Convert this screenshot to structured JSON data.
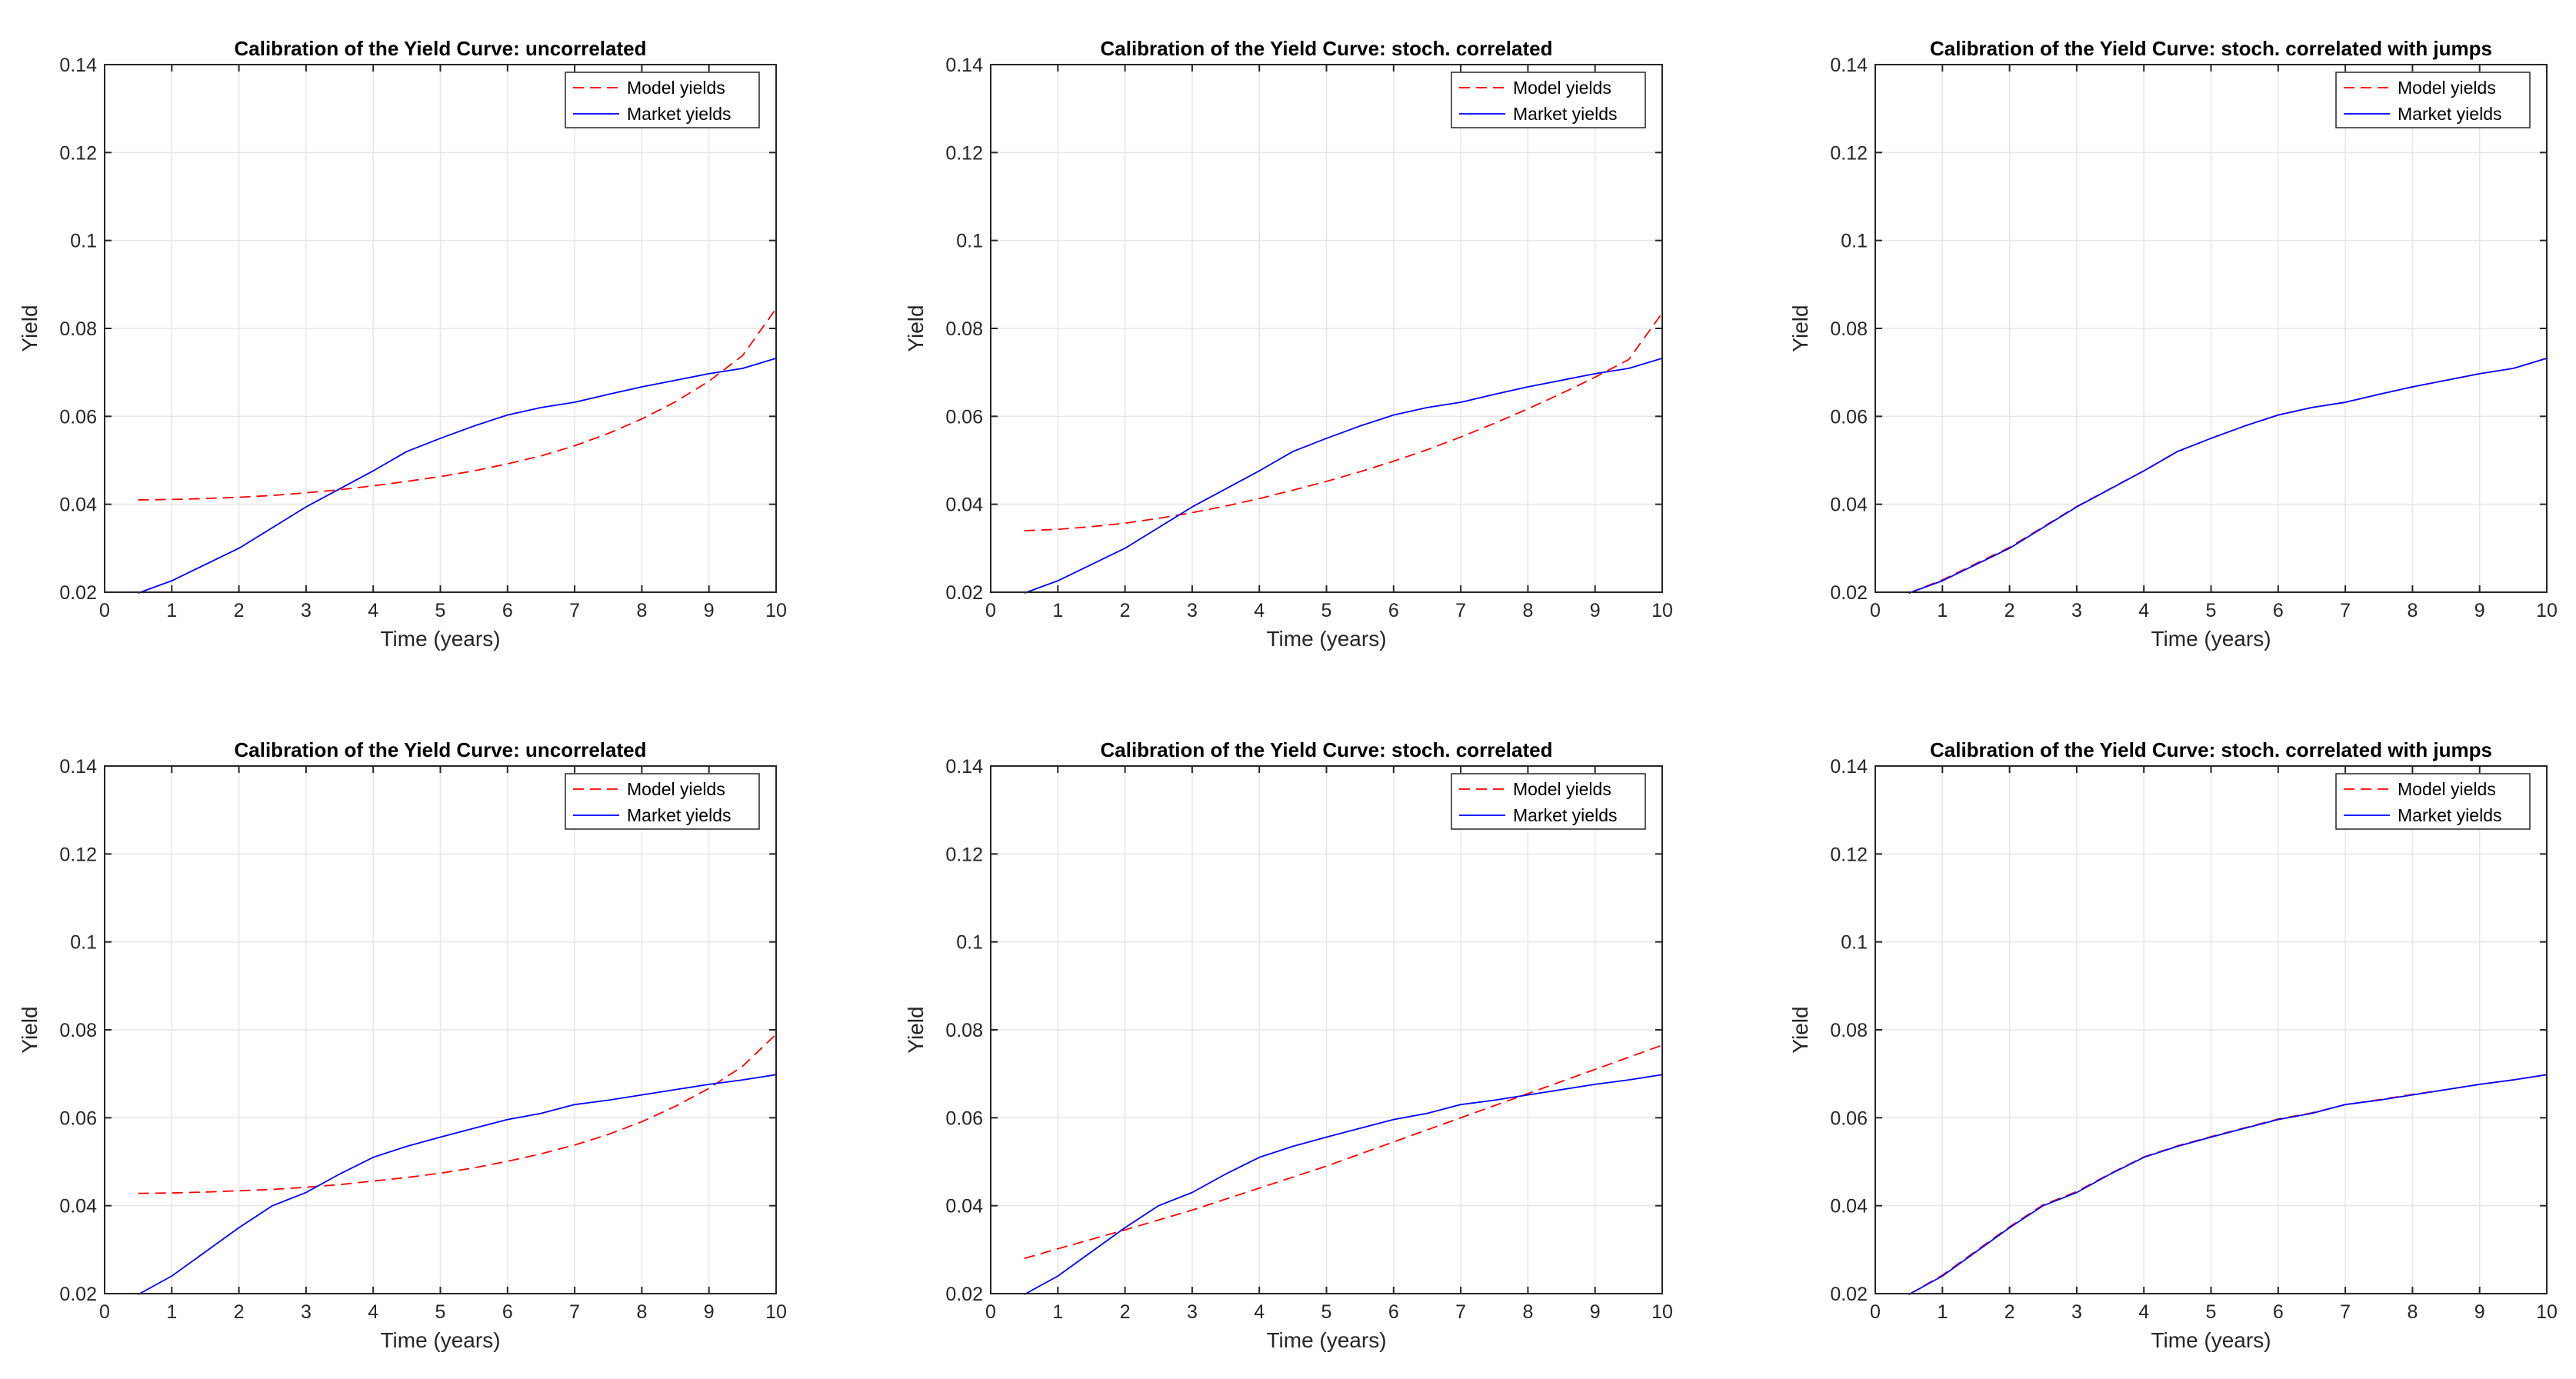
{
  "figure": {
    "background": "#ffffff",
    "grid_color": "#e6e6e6",
    "axis_color": "#262626",
    "model_color": "#ff0000",
    "market_color": "#0000ff"
  },
  "chart_data": [
    {
      "type": "line",
      "title": "Calibration of the Yield Curve: uncorrelated",
      "xlabel": "Time (years)",
      "ylabel": "Yield",
      "xlim": [
        0,
        10
      ],
      "ylim": [
        0.02,
        0.14
      ],
      "xticks": [
        "0",
        "1",
        "2",
        "3",
        "4",
        "5",
        "6",
        "7",
        "8",
        "9",
        "10"
      ],
      "yticks": [
        "0.02",
        "0.04",
        "0.06",
        "0.08",
        "0.1",
        "0.12",
        "0.14"
      ],
      "grid": true,
      "legend": "top-right",
      "series": [
        {
          "name": "Model yields",
          "style": "dashed",
          "color": "#ff0000",
          "x": [
            0.5,
            1,
            1.5,
            2,
            2.5,
            3,
            3.5,
            4,
            4.5,
            5,
            5.5,
            6,
            6.5,
            7,
            7.5,
            8,
            8.5,
            9,
            9.5,
            10
          ],
          "y": [
            0.041,
            0.0411,
            0.0413,
            0.0416,
            0.042,
            0.0426,
            0.0433,
            0.0442,
            0.0452,
            0.0463,
            0.0476,
            0.0492,
            0.051,
            0.0533,
            0.0561,
            0.0594,
            0.0633,
            0.068,
            0.0738,
            0.0845
          ]
        },
        {
          "name": "Market yields",
          "style": "solid",
          "color": "#0000ff",
          "x": [
            0.5,
            1,
            2,
            3,
            4,
            4.5,
            5,
            5.5,
            6,
            6.5,
            7,
            7.5,
            8,
            8.5,
            9,
            9.5,
            10
          ],
          "y": [
            0.0198,
            0.0226,
            0.03,
            0.0394,
            0.0476,
            0.052,
            0.055,
            0.0578,
            0.0603,
            0.062,
            0.0632,
            0.065,
            0.0667,
            0.0682,
            0.0697,
            0.0709,
            0.0732
          ]
        }
      ]
    },
    {
      "type": "line",
      "title": "Calibration of the Yield Curve: stoch. correlated",
      "xlabel": "Time (years)",
      "ylabel": "Yield",
      "xlim": [
        0,
        10
      ],
      "ylim": [
        0.02,
        0.14
      ],
      "xticks": [
        "0",
        "1",
        "2",
        "3",
        "4",
        "5",
        "6",
        "7",
        "8",
        "9",
        "10"
      ],
      "yticks": [
        "0.02",
        "0.04",
        "0.06",
        "0.08",
        "0.1",
        "0.12",
        "0.14"
      ],
      "grid": true,
      "legend": "top-right",
      "series": [
        {
          "name": "Model yields",
          "style": "dashed",
          "color": "#ff0000",
          "x": [
            0.5,
            1,
            1.5,
            2,
            2.5,
            3,
            3.5,
            4,
            4.5,
            5,
            5.5,
            6,
            6.5,
            7,
            7.5,
            8,
            8.5,
            9,
            9.5,
            10
          ],
          "y": [
            0.034,
            0.0343,
            0.0349,
            0.0357,
            0.0368,
            0.0381,
            0.0396,
            0.0413,
            0.0432,
            0.0452,
            0.0474,
            0.0498,
            0.0524,
            0.0553,
            0.0584,
            0.0617,
            0.0652,
            0.0689,
            0.0729,
            0.0835
          ]
        },
        {
          "name": "Market yields",
          "style": "solid",
          "color": "#0000ff",
          "x": [
            0.5,
            1,
            2,
            3,
            4,
            4.5,
            5,
            5.5,
            6,
            6.5,
            7,
            7.5,
            8,
            8.5,
            9,
            9.5,
            10
          ],
          "y": [
            0.0198,
            0.0226,
            0.03,
            0.0394,
            0.0476,
            0.052,
            0.055,
            0.0578,
            0.0603,
            0.062,
            0.0632,
            0.065,
            0.0667,
            0.0682,
            0.0697,
            0.0709,
            0.0732
          ]
        }
      ]
    },
    {
      "type": "line",
      "title": "Calibration of the Yield Curve: stoch. correlated with jumps",
      "xlabel": "Time (years)",
      "ylabel": "Yield",
      "xlim": [
        0,
        10
      ],
      "ylim": [
        0.02,
        0.14
      ],
      "xticks": [
        "0",
        "1",
        "2",
        "3",
        "4",
        "5",
        "6",
        "7",
        "8",
        "9",
        "10"
      ],
      "yticks": [
        "0.02",
        "0.04",
        "0.06",
        "0.08",
        "0.1",
        "0.12",
        "0.14"
      ],
      "grid": true,
      "legend": "top-right",
      "series": [
        {
          "name": "Model yields",
          "style": "dashed",
          "color": "#ff0000",
          "x": [
            0.5,
            1,
            2,
            3,
            4,
            4.5,
            5,
            5.5,
            6,
            6.5,
            7,
            7.5,
            8,
            8.5,
            9,
            9.5,
            10
          ],
          "y": [
            0.0198,
            0.0228,
            0.0302,
            0.0395,
            0.0476,
            0.052,
            0.055,
            0.0578,
            0.0603,
            0.062,
            0.0632,
            0.065,
            0.0667,
            0.0682,
            0.0697,
            0.0709,
            0.0732
          ]
        },
        {
          "name": "Market yields",
          "style": "solid",
          "color": "#0000ff",
          "x": [
            0.5,
            1,
            2,
            3,
            4,
            4.5,
            5,
            5.5,
            6,
            6.5,
            7,
            7.5,
            8,
            8.5,
            9,
            9.5,
            10
          ],
          "y": [
            0.0198,
            0.0226,
            0.03,
            0.0394,
            0.0476,
            0.052,
            0.055,
            0.0578,
            0.0603,
            0.062,
            0.0632,
            0.065,
            0.0667,
            0.0682,
            0.0697,
            0.0709,
            0.0732
          ]
        }
      ]
    },
    {
      "type": "line",
      "title": "Calibration of the Yield Curve: uncorrelated",
      "xlabel": "Time (years)",
      "ylabel": "Yield",
      "xlim": [
        0,
        10
      ],
      "ylim": [
        0.02,
        0.14
      ],
      "xticks": [
        "0",
        "1",
        "2",
        "3",
        "4",
        "5",
        "6",
        "7",
        "8",
        "9",
        "10"
      ],
      "yticks": [
        "0.02",
        "0.04",
        "0.06",
        "0.08",
        "0.1",
        "0.12",
        "0.14"
      ],
      "grid": true,
      "legend": "top-right",
      "series": [
        {
          "name": "Model yields",
          "style": "dashed",
          "color": "#ff0000",
          "x": [
            0.5,
            1,
            1.5,
            2,
            2.5,
            3,
            3.5,
            4,
            4.5,
            5,
            5.5,
            6,
            6.5,
            7,
            7.5,
            8,
            8.5,
            9,
            9.5,
            10
          ],
          "y": [
            0.0428,
            0.0429,
            0.0431,
            0.0434,
            0.0437,
            0.0442,
            0.0448,
            0.0456,
            0.0464,
            0.0474,
            0.0486,
            0.0501,
            0.0518,
            0.0538,
            0.0562,
            0.0591,
            0.0626,
            0.0667,
            0.0717,
            0.079
          ]
        },
        {
          "name": "Market yields",
          "style": "solid",
          "color": "#0000ff",
          "x": [
            0.5,
            1,
            2,
            2.5,
            3,
            3.5,
            4,
            4.5,
            5,
            5.5,
            6,
            6.5,
            7,
            7.5,
            8,
            8.5,
            9,
            9.5,
            10
          ],
          "y": [
            0.0198,
            0.024,
            0.035,
            0.04,
            0.043,
            0.0472,
            0.051,
            0.0535,
            0.0556,
            0.0576,
            0.0596,
            0.061,
            0.063,
            0.064,
            0.0652,
            0.0664,
            0.0676,
            0.0686,
            0.0698
          ]
        }
      ]
    },
    {
      "type": "line",
      "title": "Calibration of the Yield Curve: stoch. correlated",
      "xlabel": "Time (years)",
      "ylabel": "Yield",
      "xlim": [
        0,
        10
      ],
      "ylim": [
        0.02,
        0.14
      ],
      "xticks": [
        "0",
        "1",
        "2",
        "3",
        "4",
        "5",
        "6",
        "7",
        "8",
        "9",
        "10"
      ],
      "yticks": [
        "0.02",
        "0.04",
        "0.06",
        "0.08",
        "0.1",
        "0.12",
        "0.14"
      ],
      "grid": true,
      "legend": "top-right",
      "series": [
        {
          "name": "Model yields",
          "style": "dashed",
          "color": "#ff0000",
          "x": [
            0.5,
            1,
            2,
            3,
            4,
            5,
            6,
            7,
            8,
            9,
            10
          ],
          "y": [
            0.028,
            0.0302,
            0.0345,
            0.039,
            0.044,
            0.049,
            0.0545,
            0.06,
            0.0655,
            0.071,
            0.0765
          ]
        },
        {
          "name": "Market yields",
          "style": "solid",
          "color": "#0000ff",
          "x": [
            0.5,
            1,
            2,
            2.5,
            3,
            3.5,
            4,
            4.5,
            5,
            5.5,
            6,
            6.5,
            7,
            7.5,
            8,
            8.5,
            9,
            9.5,
            10
          ],
          "y": [
            0.0198,
            0.024,
            0.035,
            0.04,
            0.043,
            0.0472,
            0.051,
            0.0535,
            0.0556,
            0.0576,
            0.0596,
            0.061,
            0.063,
            0.064,
            0.0652,
            0.0664,
            0.0676,
            0.0686,
            0.0698
          ]
        }
      ]
    },
    {
      "type": "line",
      "title": "Calibration of the Yield Curve: stoch. correlated with jumps",
      "xlabel": "Time (years)",
      "ylabel": "Yield",
      "xlim": [
        0,
        10
      ],
      "ylim": [
        0.02,
        0.14
      ],
      "xticks": [
        "0",
        "1",
        "2",
        "3",
        "4",
        "5",
        "6",
        "7",
        "8",
        "9",
        "10"
      ],
      "yticks": [
        "0.02",
        "0.04",
        "0.06",
        "0.08",
        "0.1",
        "0.12",
        "0.14"
      ],
      "grid": true,
      "legend": "top-right",
      "series": [
        {
          "name": "Model yields",
          "style": "dashed",
          "color": "#ff0000",
          "x": [
            0.5,
            1,
            2,
            2.5,
            3,
            3.5,
            4,
            4.5,
            5,
            5.5,
            6,
            6.5,
            7,
            7.5,
            8,
            8.5,
            9,
            9.5,
            10
          ],
          "y": [
            0.0198,
            0.0242,
            0.0352,
            0.0402,
            0.0432,
            0.0473,
            0.0511,
            0.0536,
            0.0557,
            0.0577,
            0.0597,
            0.0611,
            0.063,
            0.0641,
            0.0653,
            0.0664,
            0.0676,
            0.0686,
            0.0698
          ]
        },
        {
          "name": "Market yields",
          "style": "solid",
          "color": "#0000ff",
          "x": [
            0.5,
            1,
            2,
            2.5,
            3,
            3.5,
            4,
            4.5,
            5,
            5.5,
            6,
            6.5,
            7,
            7.5,
            8,
            8.5,
            9,
            9.5,
            10
          ],
          "y": [
            0.0198,
            0.024,
            0.035,
            0.04,
            0.043,
            0.0472,
            0.051,
            0.0535,
            0.0556,
            0.0576,
            0.0596,
            0.061,
            0.063,
            0.064,
            0.0652,
            0.0664,
            0.0676,
            0.0686,
            0.0698
          ]
        }
      ]
    }
  ]
}
